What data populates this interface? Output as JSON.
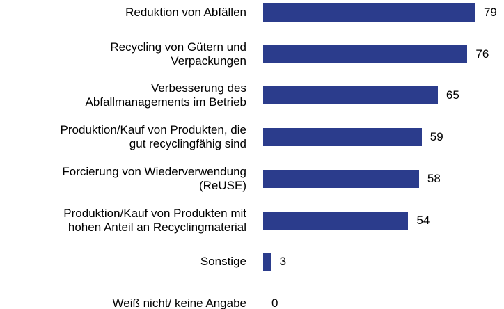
{
  "chart_data": {
    "type": "bar",
    "orientation": "horizontal",
    "categories": [
      "Reduktion von Abfällen",
      "Recycling von Gütern und\nVerpackungen",
      "Verbesserung des\nAbfallmanagements im Betrieb",
      "Produktion/Kauf von Produkten, die\ngut recyclingfähig sind",
      "Forcierung von Wiederverwendung\n(ReUSE)",
      "Produktion/Kauf von Produkten mit\nhohen Anteil an Recyclingmaterial",
      "Sonstige",
      "Weiß nicht/ keine Angabe"
    ],
    "values": [
      79,
      76,
      65,
      59,
      58,
      54,
      3,
      0
    ],
    "color": "#2b3c8c",
    "xlim": [
      0,
      100
    ]
  }
}
